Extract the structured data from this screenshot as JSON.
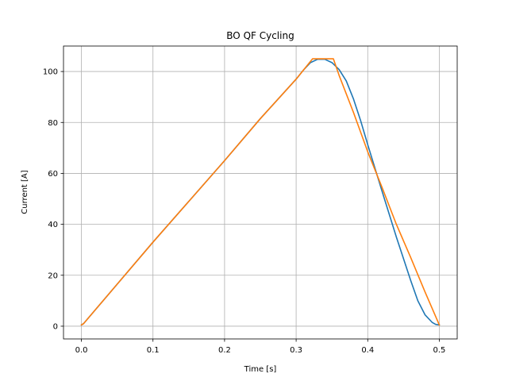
{
  "chart_data": {
    "type": "line",
    "title": "BO QF Cycling",
    "xlabel": "Time [s]",
    "ylabel": "Current [A]",
    "xlim": [
      -0.025,
      0.525
    ],
    "ylim": [
      -5,
      110
    ],
    "xticks": [
      0.0,
      0.1,
      0.2,
      0.3,
      0.4,
      0.5
    ],
    "xtick_labels": [
      "0.0",
      "0.1",
      "0.2",
      "0.3",
      "0.4",
      "0.5"
    ],
    "yticks": [
      0,
      20,
      40,
      60,
      80,
      100
    ],
    "ytick_labels": [
      "0",
      "20",
      "40",
      "60",
      "80",
      "100"
    ],
    "grid": true,
    "series": [
      {
        "color": "#1f77b4",
        "x": [
          0.0,
          0.003,
          0.05,
          0.1,
          0.15,
          0.2,
          0.25,
          0.3,
          0.31,
          0.32,
          0.33,
          0.34,
          0.35,
          0.36,
          0.37,
          0.38,
          0.39,
          0.4,
          0.42,
          0.44,
          0.46,
          0.47,
          0.48,
          0.49,
          0.495,
          0.5
        ],
        "y": [
          0.5,
          1.0,
          16.5,
          33.0,
          49.0,
          65.0,
          81.5,
          97.0,
          100.5,
          103.5,
          104.8,
          104.8,
          103.5,
          100.8,
          96.3,
          89.3,
          80.8,
          71.3,
          53.0,
          35.0,
          18.0,
          10.0,
          4.5,
          1.5,
          0.7,
          0.5
        ]
      },
      {
        "color": "#ff7f0e",
        "x": [
          0.0,
          0.003,
          0.05,
          0.1,
          0.15,
          0.2,
          0.25,
          0.3,
          0.323,
          0.352,
          0.36,
          0.38,
          0.4,
          0.42,
          0.44,
          0.46,
          0.48,
          0.5
        ],
        "y": [
          0.5,
          1.0,
          16.5,
          33.0,
          49.0,
          65.0,
          81.5,
          97.0,
          105.0,
          105.0,
          98.5,
          84.0,
          68.5,
          54.5,
          40.0,
          27.0,
          13.5,
          0.5
        ]
      }
    ]
  }
}
